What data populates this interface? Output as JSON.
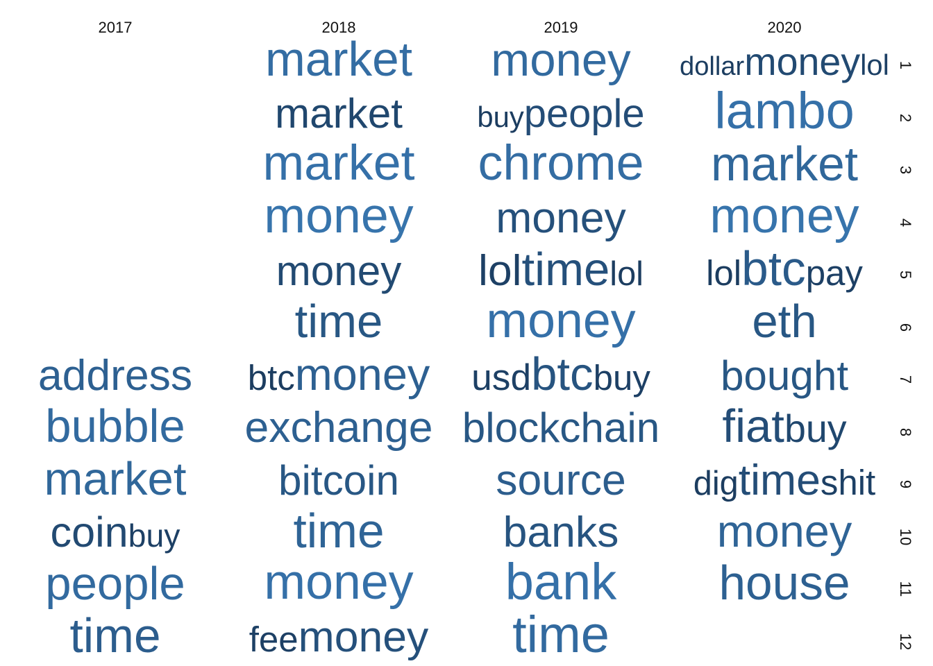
{
  "chart_data": {
    "type": "word-cloud-grid",
    "columns": [
      "2017",
      "2018",
      "2019",
      "2020"
    ],
    "rows": [
      "1",
      "2",
      "3",
      "4",
      "5",
      "6",
      "7",
      "8",
      "9",
      "10",
      "11",
      "12"
    ],
    "color_scale": [
      "#1a3a5c",
      "#3a7ab5"
    ],
    "cells": [
      {
        "col": "2018",
        "row": "1",
        "words": [
          {
            "text": "market",
            "weight": 0.9,
            "shade": 0.8
          }
        ]
      },
      {
        "col": "2019",
        "row": "1",
        "words": [
          {
            "text": "money",
            "weight": 0.85,
            "shade": 0.75
          }
        ]
      },
      {
        "col": "2020",
        "row": "1",
        "words": [
          {
            "text": "dollar",
            "weight": 0.22,
            "shade": 0.05
          },
          {
            "text": "money",
            "weight": 0.6,
            "shade": 0.25
          },
          {
            "text": "lol",
            "weight": 0.3,
            "shade": 0.1
          }
        ]
      },
      {
        "col": "2018",
        "row": "2",
        "words": [
          {
            "text": "market",
            "weight": 0.7,
            "shade": 0.2
          }
        ]
      },
      {
        "col": "2019",
        "row": "2",
        "words": [
          {
            "text": "buy",
            "weight": 0.3,
            "shade": 0.05
          },
          {
            "text": "people",
            "weight": 0.65,
            "shade": 0.3
          }
        ]
      },
      {
        "col": "2020",
        "row": "2",
        "words": [
          {
            "text": "lambo",
            "weight": 1.0,
            "shade": 0.85
          }
        ]
      },
      {
        "col": "2018",
        "row": "3",
        "words": [
          {
            "text": "market",
            "weight": 0.95,
            "shade": 0.85
          }
        ]
      },
      {
        "col": "2019",
        "row": "3",
        "words": [
          {
            "text": "chrome",
            "weight": 0.95,
            "shade": 0.8
          }
        ]
      },
      {
        "col": "2020",
        "row": "3",
        "words": [
          {
            "text": "market",
            "weight": 0.9,
            "shade": 0.7
          }
        ]
      },
      {
        "col": "2018",
        "row": "4",
        "words": [
          {
            "text": "money",
            "weight": 0.95,
            "shade": 0.9
          }
        ]
      },
      {
        "col": "2019",
        "row": "4",
        "words": [
          {
            "text": "money",
            "weight": 0.75,
            "shade": 0.35
          }
        ]
      },
      {
        "col": "2020",
        "row": "4",
        "words": [
          {
            "text": "money",
            "weight": 0.95,
            "shade": 0.9
          }
        ]
      },
      {
        "col": "2018",
        "row": "5",
        "words": [
          {
            "text": "money",
            "weight": 0.7,
            "shade": 0.25
          }
        ]
      },
      {
        "col": "2019",
        "row": "5",
        "words": [
          {
            "text": "lol",
            "weight": 0.75,
            "shade": 0.1
          },
          {
            "text": "time",
            "weight": 0.85,
            "shade": 0.35
          },
          {
            "text": "lol",
            "weight": 0.45,
            "shade": 0.05
          }
        ]
      },
      {
        "col": "2020",
        "row": "5",
        "words": [
          {
            "text": "lol",
            "weight": 0.5,
            "shade": 0.05
          },
          {
            "text": "btc",
            "weight": 0.9,
            "shade": 0.5
          },
          {
            "text": "pay",
            "weight": 0.5,
            "shade": 0.1
          }
        ]
      },
      {
        "col": "2018",
        "row": "6",
        "words": [
          {
            "text": "time",
            "weight": 0.85,
            "shade": 0.45
          }
        ]
      },
      {
        "col": "2019",
        "row": "6",
        "words": [
          {
            "text": "money",
            "weight": 0.95,
            "shade": 0.85
          }
        ]
      },
      {
        "col": "2020",
        "row": "6",
        "words": [
          {
            "text": "eth",
            "weight": 0.85,
            "shade": 0.45
          }
        ]
      },
      {
        "col": "2017",
        "row": "7",
        "words": [
          {
            "text": "address",
            "weight": 0.75,
            "shade": 0.6
          }
        ]
      },
      {
        "col": "2018",
        "row": "7",
        "words": [
          {
            "text": "btc",
            "weight": 0.5,
            "shade": 0.05
          },
          {
            "text": "money",
            "weight": 0.8,
            "shade": 0.6
          }
        ]
      },
      {
        "col": "2019",
        "row": "7",
        "words": [
          {
            "text": "usd",
            "weight": 0.55,
            "shade": 0.1
          },
          {
            "text": "btc",
            "weight": 0.85,
            "shade": 0.4
          },
          {
            "text": "buy",
            "weight": 0.5,
            "shade": 0.1
          }
        ]
      },
      {
        "col": "2020",
        "row": "7",
        "words": [
          {
            "text": "bought",
            "weight": 0.7,
            "shade": 0.45
          }
        ]
      },
      {
        "col": "2017",
        "row": "8",
        "words": [
          {
            "text": "bubble",
            "weight": 0.85,
            "shade": 0.75
          }
        ]
      },
      {
        "col": "2018",
        "row": "8",
        "words": [
          {
            "text": "exchange",
            "weight": 0.75,
            "shade": 0.6
          }
        ]
      },
      {
        "col": "2019",
        "row": "8",
        "words": [
          {
            "text": "blockchain",
            "weight": 0.7,
            "shade": 0.45
          }
        ]
      },
      {
        "col": "2020",
        "row": "8",
        "words": [
          {
            "text": "fiat",
            "weight": 0.85,
            "shade": 0.3
          },
          {
            "text": "buy",
            "weight": 0.6,
            "shade": 0.2
          }
        ]
      },
      {
        "col": "2017",
        "row": "9",
        "words": [
          {
            "text": "market",
            "weight": 0.85,
            "shade": 0.7
          }
        ]
      },
      {
        "col": "2018",
        "row": "9",
        "words": [
          {
            "text": "bitcoin",
            "weight": 0.7,
            "shade": 0.45
          }
        ]
      },
      {
        "col": "2019",
        "row": "9",
        "words": [
          {
            "text": "source",
            "weight": 0.75,
            "shade": 0.55
          }
        ]
      },
      {
        "col": "2020",
        "row": "9",
        "words": [
          {
            "text": "dig",
            "weight": 0.45,
            "shade": 0.05
          },
          {
            "text": "time",
            "weight": 0.75,
            "shade": 0.3
          },
          {
            "text": "shit",
            "weight": 0.5,
            "shade": 0.1
          }
        ]
      },
      {
        "col": "2017",
        "row": "10",
        "words": [
          {
            "text": "coin",
            "weight": 0.72,
            "shade": 0.25
          },
          {
            "text": "buy",
            "weight": 0.4,
            "shade": 0.1
          }
        ]
      },
      {
        "col": "2018",
        "row": "10",
        "words": [
          {
            "text": "time",
            "weight": 0.9,
            "shade": 0.65
          }
        ]
      },
      {
        "col": "2019",
        "row": "10",
        "words": [
          {
            "text": "banks",
            "weight": 0.75,
            "shade": 0.4
          }
        ]
      },
      {
        "col": "2020",
        "row": "10",
        "words": [
          {
            "text": "money",
            "weight": 0.8,
            "shade": 0.65
          }
        ]
      },
      {
        "col": "2017",
        "row": "11",
        "words": [
          {
            "text": "people",
            "weight": 0.85,
            "shade": 0.75
          }
        ]
      },
      {
        "col": "2018",
        "row": "11",
        "words": [
          {
            "text": "money",
            "weight": 0.95,
            "shade": 0.85
          }
        ]
      },
      {
        "col": "2019",
        "row": "11",
        "words": [
          {
            "text": "bank",
            "weight": 1.0,
            "shade": 0.85
          }
        ]
      },
      {
        "col": "2020",
        "row": "11",
        "words": [
          {
            "text": "house",
            "weight": 0.9,
            "shade": 0.6
          }
        ]
      },
      {
        "col": "2017",
        "row": "12",
        "words": [
          {
            "text": "time",
            "weight": 0.9,
            "shade": 0.55
          }
        ]
      },
      {
        "col": "2018",
        "row": "12",
        "words": [
          {
            "text": "fee",
            "weight": 0.5,
            "shade": 0.1
          },
          {
            "text": "money",
            "weight": 0.75,
            "shade": 0.35
          }
        ]
      },
      {
        "col": "2019",
        "row": "12",
        "words": [
          {
            "text": "time",
            "weight": 1.0,
            "shade": 0.75
          }
        ]
      }
    ]
  }
}
